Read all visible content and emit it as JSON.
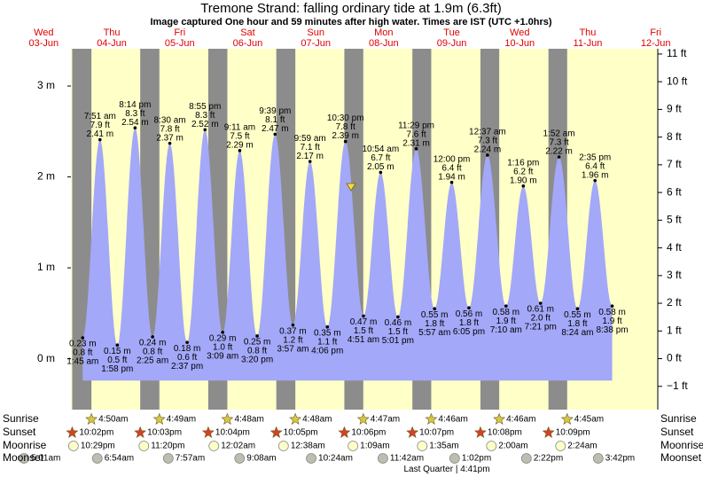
{
  "chart_data": {
    "type": "area",
    "title": "Tremone Strand: falling  ordinary tide at 1.9m (6.3ft)",
    "subtitle": "Image captured One hour and 59 minutes after high water. Times are IST (UTC +1.0hrs)",
    "days": [
      {
        "weekday": "Wed",
        "date": "03-Jun"
      },
      {
        "weekday": "Thu",
        "date": "04-Jun"
      },
      {
        "weekday": "Fri",
        "date": "05-Jun"
      },
      {
        "weekday": "Sat",
        "date": "06-Jun"
      },
      {
        "weekday": "Sun",
        "date": "07-Jun"
      },
      {
        "weekday": "Mon",
        "date": "08-Jun"
      },
      {
        "weekday": "Tue",
        "date": "09-Jun"
      },
      {
        "weekday": "Wed",
        "date": "10-Jun"
      },
      {
        "weekday": "Thu",
        "date": "11-Jun"
      },
      {
        "weekday": "Fri",
        "date": "12-Jun"
      }
    ],
    "dates": [
      "04-Jun",
      "04-Jun",
      "04-Jun",
      "04-Jun",
      "05-Jun",
      "05-Jun",
      "05-Jun",
      "05-Jun",
      "06-Jun",
      "06-Jun",
      "06-Jun",
      "06-Jun",
      "07-Jun",
      "07-Jun",
      "07-Jun",
      "07-Jun",
      "08-Jun",
      "08-Jun",
      "08-Jun",
      "08-Jun",
      "09-Jun",
      "09-Jun",
      "09-Jun",
      "10-Jun",
      "10-Jun",
      "10-Jun",
      "10-Jun",
      "11-Jun",
      "11-Jun",
      "11-Jun",
      "11-Jun"
    ],
    "times": [
      "1:45 am",
      "7:51 am",
      "1:58 pm",
      "8:14 pm",
      "2:25 am",
      "8:30 am",
      "2:37 pm",
      "8:55 pm",
      "3:09 am",
      "9:11 am",
      "3:20 pm",
      "9:39 pm",
      "3:57 am",
      "9:59 am",
      "4:06 pm",
      "10:30 pm",
      "4:51 am",
      "10:54 am",
      "5:01 pm",
      "11:29 pm",
      "5:57 am",
      "12:00 pm",
      "6:05 pm",
      "12:37 am",
      "7:10 am",
      "1:16 pm",
      "7:21 pm",
      "1:52 am",
      "8:24 am",
      "2:35 pm",
      "8:38 pm"
    ],
    "values": [
      0.23,
      2.41,
      0.15,
      2.54,
      0.24,
      2.37,
      0.18,
      2.52,
      0.29,
      2.29,
      0.25,
      2.47,
      0.37,
      2.17,
      0.35,
      2.39,
      0.47,
      2.05,
      0.46,
      2.31,
      0.55,
      1.94,
      0.56,
      2.24,
      0.58,
      1.9,
      0.61,
      2.22,
      0.55,
      1.96,
      0.58
    ],
    "value_labels": [
      "0.23 m",
      "2.41 m",
      "0.15 m",
      "2.54 m",
      "0.24 m",
      "2.37 m",
      "0.18 m",
      "2.52 m",
      "0.29 m",
      "2.29 m",
      "0.25 m",
      "2.47 m",
      "0.37 m",
      "2.17 m",
      "0.35 m",
      "2.39 m",
      "0.47 m",
      "2.05 m",
      "0.46 m",
      "2.31 m",
      "0.55 m",
      "1.94 m",
      "0.56 m",
      "2.24 m",
      "0.58 m",
      "1.90 m",
      "0.61 m",
      "2.22 m",
      "0.55 m",
      "1.96 m",
      "0.58 m"
    ],
    "ft_labels": [
      "0.8 ft",
      "7.9 ft",
      "0.5 ft",
      "8.3 ft",
      "0.8 ft",
      "7.8 ft",
      "0.6 ft",
      "8.3 ft",
      "1.0 ft",
      "7.5 ft",
      "0.8 ft",
      "8.1 ft",
      "1.2 ft",
      "7.1 ft",
      "1.1 ft",
      "7.8 ft",
      "1.5 ft",
      "6.7 ft",
      "1.5 ft",
      "7.6 ft",
      "1.8 ft",
      "6.4 ft",
      "1.8 ft",
      "7.3 ft",
      "1.9 ft",
      "6.2 ft",
      "2.0 ft",
      "7.3 ft",
      "1.8 ft",
      "6.4 ft",
      "1.9 ft"
    ],
    "color": "#a3a8f8",
    "ylim": [
      -0.56,
      3.41
    ],
    "yticks": [
      {
        "value": 0,
        "label": "0 m"
      },
      {
        "value": 1,
        "label": "1 m"
      },
      {
        "value": 2,
        "label": "2 m"
      },
      {
        "value": 3,
        "label": "3 m"
      }
    ],
    "y2lim": [
      -1.84,
      11.19
    ],
    "y2ticks": [
      {
        "value": -1,
        "label": "−1 ft"
      },
      {
        "value": 0,
        "label": "0 ft"
      },
      {
        "value": 1,
        "label": "1 ft"
      },
      {
        "value": 2,
        "label": "2 ft"
      },
      {
        "value": 3,
        "label": "3 ft"
      },
      {
        "value": 4,
        "label": "4 ft"
      },
      {
        "value": 5,
        "label": "5 ft"
      },
      {
        "value": 6,
        "label": "6 ft"
      },
      {
        "value": 7,
        "label": "7 ft"
      },
      {
        "value": 8,
        "label": "8 ft"
      },
      {
        "value": 9,
        "label": "9 ft"
      },
      {
        "value": 10,
        "label": "10 ft"
      },
      {
        "value": 11,
        "label": "11 ft"
      }
    ],
    "almanac": [
      {
        "label": "Sunrise",
        "dates": [
          "04-Jun",
          "05-Jun",
          "06-Jun",
          "07-Jun",
          "08-Jun",
          "09-Jun",
          "10-Jun",
          "11-Jun"
        ],
        "times": [
          "4:50am",
          "4:49am",
          "4:48am",
          "4:48am",
          "4:47am",
          "4:46am",
          "4:46am",
          "4:45am"
        ]
      },
      {
        "label": "Sunset",
        "dates": [
          "03-Jun",
          "04-Jun",
          "05-Jun",
          "06-Jun",
          "07-Jun",
          "08-Jun",
          "09-Jun",
          "10-Jun"
        ],
        "times": [
          "10:02pm",
          "10:03pm",
          "10:04pm",
          "10:05pm",
          "10:06pm",
          "10:07pm",
          "10:08pm",
          "10:09pm"
        ]
      },
      {
        "label": "Moonrise",
        "dates": [
          "03-Jun",
          "04-Jun",
          "06-Jun",
          "07-Jun",
          "08-Jun",
          "09-Jun",
          "10-Jun",
          "11-Jun"
        ],
        "times": [
          "10:29pm",
          "11:20pm",
          "12:02am",
          "12:38am",
          "1:09am",
          "1:35am",
          "2:00am",
          "2:24am"
        ]
      },
      {
        "label": "Moonset",
        "dates": [
          "03-Jun",
          "04-Jun",
          "05-Jun",
          "06-Jun",
          "07-Jun",
          "08-Jun",
          "09-Jun",
          "10-Jun",
          "11-Jun"
        ],
        "times": [
          "5:01am",
          "6:54am",
          "7:57am",
          "9:08am",
          "10:24am",
          "11:42am",
          "1:02pm",
          "2:22pm",
          "3:42pm"
        ]
      }
    ],
    "moon_phase": "Last Quarter | 4:41pm"
  }
}
